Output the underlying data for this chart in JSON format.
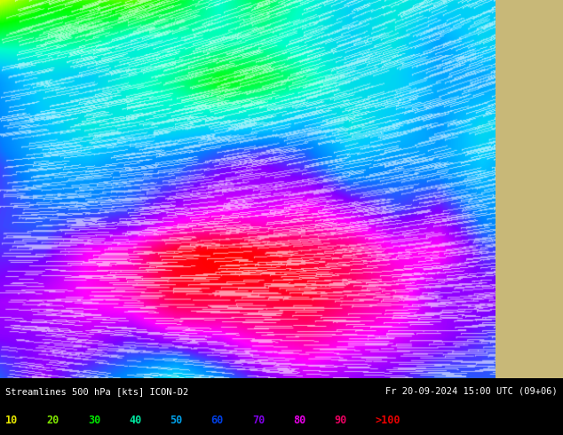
{
  "title_left": "Streamlines 500 hPa [kts] ICON-D2",
  "title_right": "Fr 20-09-2024 15:00 UTC (09+06)",
  "legend_values": [
    "10",
    "20",
    "30",
    "40",
    "50",
    "60",
    "70",
    "80",
    "90",
    ">100"
  ],
  "legend_colors": [
    "#e8e800",
    "#c8e800",
    "#00e800",
    "#00e8c8",
    "#00c8e8",
    "#0080ff",
    "#8000ff",
    "#e800e8",
    "#ff0080",
    "#ff0000"
  ],
  "background_color": "#000000",
  "bottom_bar_color": "#000000",
  "fig_width": 6.34,
  "fig_height": 4.9,
  "colormap_colors": [
    [
      0.0,
      "#ffff00"
    ],
    [
      0.1,
      "#c8ff00"
    ],
    [
      0.2,
      "#00ff00"
    ],
    [
      0.3,
      "#00ffc8"
    ],
    [
      0.4,
      "#00c8ff"
    ],
    [
      0.5,
      "#0080ff"
    ],
    [
      0.6,
      "#8000ff"
    ],
    [
      0.7,
      "#ff00ff"
    ],
    [
      0.8,
      "#ff0080"
    ],
    [
      1.0,
      "#ff0000"
    ]
  ]
}
